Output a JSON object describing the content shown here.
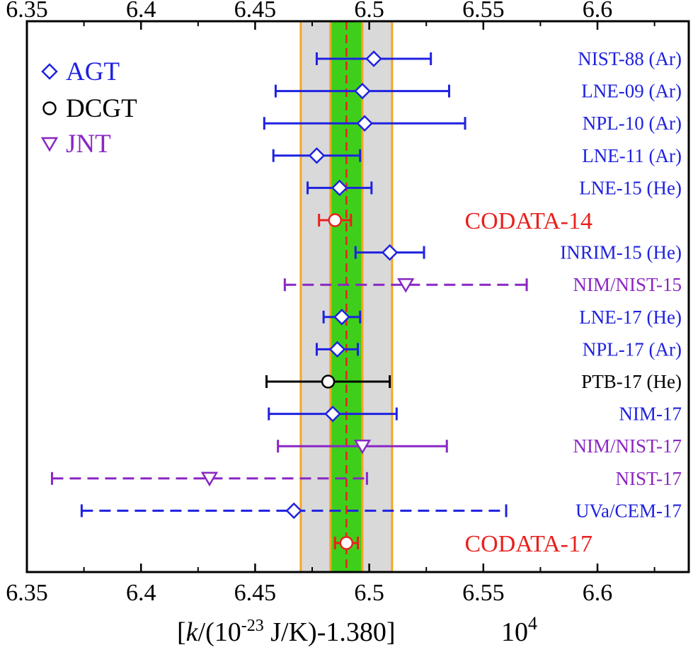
{
  "chart_data": {
    "type": "scatter",
    "subtype": "horizontal error-bar plot",
    "xlabel_parts": {
      "open": "[",
      "italic": "k",
      "mid": "/(10",
      "sup": "-23",
      "tail": " J/K)-1.380]",
      "scale_base": "10",
      "scale_sup": "4"
    },
    "xlim": [
      6.35,
      6.64
    ],
    "xticks": [
      {
        "value": 6.35,
        "label": "6.35"
      },
      {
        "value": 6.4,
        "label": "6.4"
      },
      {
        "value": 6.45,
        "label": "6.45"
      },
      {
        "value": 6.5,
        "label": "6.5"
      },
      {
        "value": 6.55,
        "label": "6.55"
      },
      {
        "value": 6.6,
        "label": "6.6"
      }
    ],
    "reference_line": {
      "value": 6.49,
      "style": "dashed",
      "color": "#e8211d"
    },
    "bands": [
      {
        "name": "outer-band",
        "from": 6.47,
        "to": 6.51,
        "fill": "#d9d9d9",
        "edge": "#f5a623"
      },
      {
        "name": "inner-band",
        "from": 6.483,
        "to": 6.497,
        "fill": "#3fcf1b",
        "edge": "#f5a623"
      }
    ],
    "legend": [
      {
        "marker": "diamond",
        "label": "AGT",
        "color": "#1f22e0"
      },
      {
        "marker": "circle",
        "label": "DCGT",
        "color": "#000000"
      },
      {
        "marker": "triangle-down",
        "label": "JNT",
        "color": "#8a27c4"
      }
    ],
    "series": [
      {
        "label": "NIST-88 (Ar)",
        "method": "AGT",
        "value": 6.502,
        "low": 6.477,
        "high": 6.527,
        "color": "#1f22e0",
        "line": "solid"
      },
      {
        "label": "LNE-09 (Ar)",
        "method": "AGT",
        "value": 6.497,
        "low": 6.459,
        "high": 6.535,
        "color": "#1f22e0",
        "line": "solid"
      },
      {
        "label": "NPL-10 (Ar)",
        "method": "AGT",
        "value": 6.498,
        "low": 6.454,
        "high": 6.542,
        "color": "#1f22e0",
        "line": "solid"
      },
      {
        "label": "LNE-11 (Ar)",
        "method": "AGT",
        "value": 6.477,
        "low": 6.458,
        "high": 6.496,
        "color": "#1f22e0",
        "line": "solid"
      },
      {
        "label": "LNE-15 (He)",
        "method": "AGT",
        "value": 6.487,
        "low": 6.473,
        "high": 6.501,
        "color": "#1f22e0",
        "line": "solid"
      },
      {
        "label": "CODATA-14",
        "method": "CODATA",
        "value": 6.485,
        "low": 6.478,
        "high": 6.492,
        "color": "#e8211d",
        "line": "solid"
      },
      {
        "label": "INRIM-15 (He)",
        "method": "AGT",
        "value": 6.509,
        "low": 6.494,
        "high": 6.524,
        "color": "#1f22e0",
        "line": "solid"
      },
      {
        "label": "NIM/NIST-15",
        "method": "JNT",
        "value": 6.516,
        "low": 6.463,
        "high": 6.569,
        "color": "#8a27c4",
        "line": "dashed"
      },
      {
        "label": "LNE-17 (He)",
        "method": "AGT",
        "value": 6.488,
        "low": 6.48,
        "high": 6.496,
        "color": "#1f22e0",
        "line": "solid"
      },
      {
        "label": "NPL-17 (Ar)",
        "method": "AGT",
        "value": 6.486,
        "low": 6.477,
        "high": 6.495,
        "color": "#1f22e0",
        "line": "solid"
      },
      {
        "label": "PTB-17 (He)",
        "method": "DCGT",
        "value": 6.482,
        "low": 6.455,
        "high": 6.509,
        "color": "#000000",
        "line": "solid"
      },
      {
        "label": "NIM-17",
        "method": "AGT",
        "value": 6.484,
        "low": 6.456,
        "high": 6.512,
        "color": "#1f22e0",
        "line": "solid"
      },
      {
        "label": "NIM/NIST-17",
        "method": "JNT",
        "value": 6.497,
        "low": 6.46,
        "high": 6.534,
        "color": "#8a27c4",
        "line": "solid"
      },
      {
        "label": "NIST-17",
        "method": "JNT",
        "value": 6.43,
        "low": 6.361,
        "high": 6.499,
        "color": "#8a27c4",
        "line": "dashed"
      },
      {
        "label": "UVa/CEM-17",
        "method": "AGT",
        "value": 6.467,
        "low": 6.374,
        "high": 6.56,
        "color": "#1f22e0",
        "line": "dashed"
      },
      {
        "label": "CODATA-17",
        "method": "CODATA",
        "value": 6.49,
        "low": 6.485,
        "high": 6.495,
        "color": "#e8211d",
        "line": "solid"
      }
    ]
  }
}
